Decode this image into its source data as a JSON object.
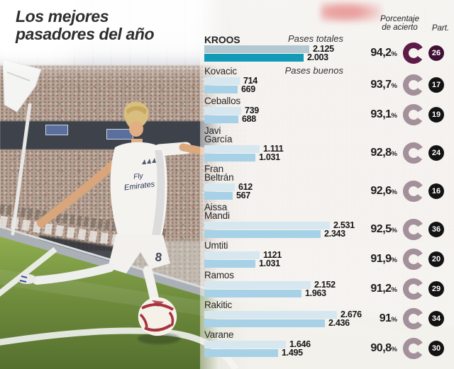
{
  "title": {
    "line1": "Los mejores",
    "line2": "pasadores del año"
  },
  "header": {
    "accuracy_line1": "Porcentaje",
    "accuracy_line2": "de acierto",
    "participation_label": "Part.",
    "percent_symbol": "%"
  },
  "bar_legend": {
    "total": "Pases totales",
    "good": "Pases buenos"
  },
  "colors": {
    "bar_total": "#d7e7f0",
    "bar_good": "#a6d1e7",
    "bar_total_highlight": "#b4c8d2",
    "bar_good_highlight": "#129ab6",
    "ring_default": "#a3909a",
    "ring_highlight": "#5c1c47",
    "badge_default": "#131313",
    "badge_highlight": "#3f1033",
    "grass": "#6d8a3c",
    "ball_pattern": "#a8333e"
  },
  "chart_data": {
    "type": "bar",
    "orientation": "horizontal",
    "series_labels": [
      "Pases totales",
      "Pases buenos"
    ],
    "max_value": 2676,
    "players": [
      {
        "name_lines": [
          "KROOS"
        ],
        "annotation": "Pases totales",
        "pases_totales": 2125,
        "pases_totales_label": "2.125",
        "pases_buenos": 2003,
        "pases_buenos_label": "2.003",
        "porcentaje_acierto": "94,2",
        "partidos": "26",
        "highlight": true
      },
      {
        "name_lines": [
          "Kovacic"
        ],
        "annotation": "Pases buenos",
        "pases_totales": 714,
        "pases_totales_label": "714",
        "pases_buenos": 669,
        "pases_buenos_label": "669",
        "porcentaje_acierto": "93,7",
        "partidos": "17",
        "highlight": false
      },
      {
        "name_lines": [
          "Ceballos"
        ],
        "annotation": "",
        "pases_totales": 739,
        "pases_totales_label": "739",
        "pases_buenos": 688,
        "pases_buenos_label": "688",
        "porcentaje_acierto": "93,1",
        "partidos": "19",
        "highlight": false
      },
      {
        "name_lines": [
          "Javi",
          "García"
        ],
        "annotation": "",
        "pases_totales": 1111,
        "pases_totales_label": "1.111",
        "pases_buenos": 1031,
        "pases_buenos_label": "1.031",
        "porcentaje_acierto": "92,8",
        "partidos": "24",
        "highlight": false
      },
      {
        "name_lines": [
          "Fran",
          "Beltrán"
        ],
        "annotation": "",
        "pases_totales": 612,
        "pases_totales_label": "612",
        "pases_buenos": 567,
        "pases_buenos_label": "567",
        "porcentaje_acierto": "92,6",
        "partidos": "16",
        "highlight": false
      },
      {
        "name_lines": [
          "Aissa",
          "Mandi"
        ],
        "annotation": "",
        "pases_totales": 2531,
        "pases_totales_label": "2.531",
        "pases_buenos": 2343,
        "pases_buenos_label": "2.343",
        "porcentaje_acierto": "92,5",
        "partidos": "36",
        "highlight": false
      },
      {
        "name_lines": [
          "Umtiti"
        ],
        "annotation": "",
        "pases_totales": 1121,
        "pases_totales_label": "1121",
        "pases_buenos": 1031,
        "pases_buenos_label": "1.031",
        "porcentaje_acierto": "91,9",
        "partidos": "20",
        "highlight": false
      },
      {
        "name_lines": [
          "Ramos"
        ],
        "annotation": "",
        "pases_totales": 2152,
        "pases_totales_label": "2.152",
        "pases_buenos": 1963,
        "pases_buenos_label": "1.963",
        "porcentaje_acierto": "91,2",
        "partidos": "29",
        "highlight": false
      },
      {
        "name_lines": [
          "Rakitic"
        ],
        "annotation": "",
        "pases_totales": 2676,
        "pases_totales_label": "2.676",
        "pases_buenos": 2436,
        "pases_buenos_label": "2.436",
        "porcentaje_acierto": "91",
        "partidos": "34",
        "highlight": false
      },
      {
        "name_lines": [
          "Varane"
        ],
        "annotation": "",
        "pases_totales": 1646,
        "pases_totales_label": "1.646",
        "pases_buenos": 1495,
        "pases_buenos_label": "1.495",
        "porcentaje_acierto": "90,8",
        "partidos": "30",
        "highlight": false
      }
    ]
  }
}
